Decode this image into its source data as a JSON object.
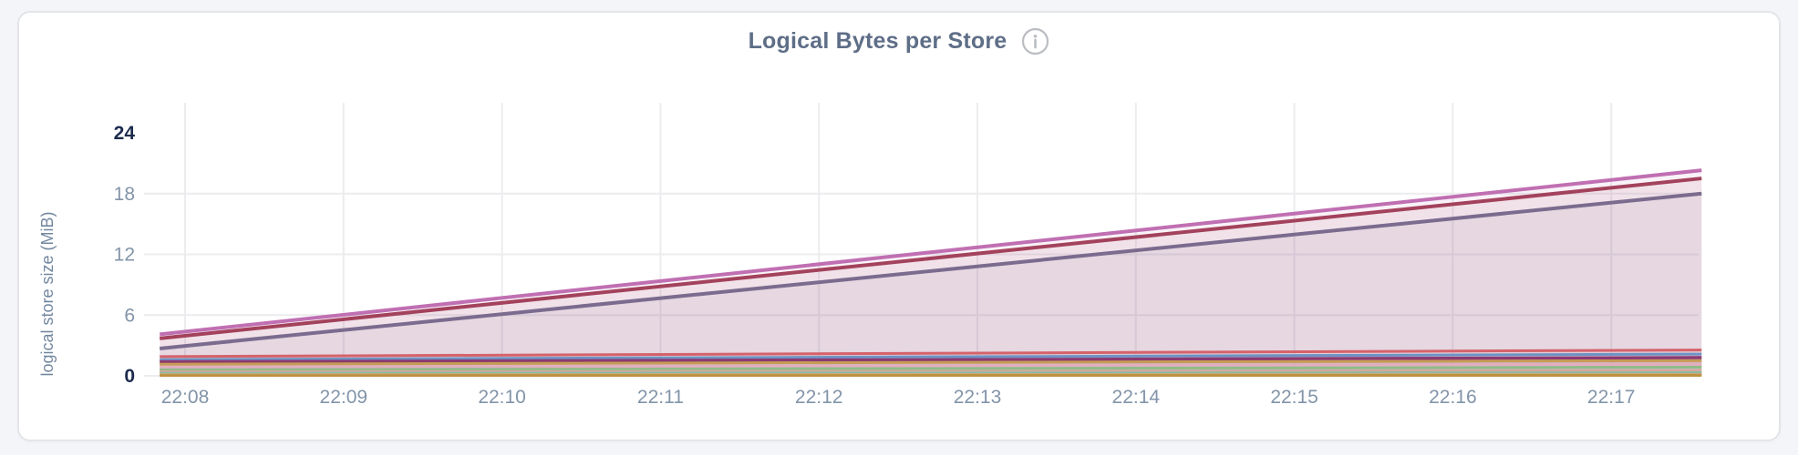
{
  "page": {
    "background": "#f4f5f9"
  },
  "card": {
    "background": "#ffffff",
    "border_color": "#e4e5e9"
  },
  "chart": {
    "title": "Logical Bytes per Store",
    "info_icon": "info-circle",
    "y_axis": {
      "label": "logical store size (MiB)",
      "ticks": [
        0,
        6,
        12,
        18,
        24
      ],
      "emphasized_ticks": [
        0,
        24
      ],
      "range": [
        0,
        24
      ]
    },
    "x_axis": {
      "tick_labels": [
        "22:08",
        "22:09",
        "22:10",
        "22:11",
        "22:12",
        "22:13",
        "22:14",
        "22:15",
        "22:16",
        "22:17"
      ]
    }
  },
  "chart_data": {
    "type": "area",
    "title": "Logical Bytes per Store",
    "xlabel": "",
    "ylabel": "logical store size (MiB)",
    "ylim": [
      0,
      24
    ],
    "grid": true,
    "legend_position": "none",
    "x_tick_labels": [
      "22:08",
      "22:09",
      "22:10",
      "22:11",
      "22:12",
      "22:13",
      "22:14",
      "22:15",
      "22:16",
      "22:17"
    ],
    "x_tick_positions_min": [
      0,
      1,
      2,
      3,
      4,
      5,
      6,
      7,
      8,
      9
    ],
    "x_domain_min": [
      -0.16,
      9.57
    ],
    "note": "all series are straight lines between the two endpoints; x in minutes after 22:08; y in MiB",
    "series": [
      {
        "name": "series-slate",
        "color": "#716f90",
        "x": [
          -0.16,
          9.57
        ],
        "y": [
          2.7,
          18.0
        ],
        "line_width": 4
      },
      {
        "name": "series-maroon",
        "color": "#a13e54",
        "x": [
          -0.16,
          9.57
        ],
        "y": [
          3.7,
          19.5
        ],
        "line_width": 4
      },
      {
        "name": "series-orchid",
        "color": "#c06fb2",
        "x": [
          -0.16,
          9.57
        ],
        "y": [
          4.1,
          20.3
        ],
        "line_width": 4
      },
      {
        "name": "series-salmon",
        "color": "#d5626a",
        "x": [
          -0.16,
          9.57
        ],
        "y": [
          1.9,
          2.55
        ],
        "line_width": 3
      },
      {
        "name": "series-steel-blue",
        "color": "#6e93c4",
        "x": [
          -0.16,
          9.57
        ],
        "y": [
          1.6,
          2.15
        ],
        "line_width": 3
      },
      {
        "name": "series-magenta",
        "color": "#8c3a71",
        "x": [
          -0.16,
          9.57
        ],
        "y": [
          1.38,
          1.8
        ],
        "line_width": 3.5
      },
      {
        "name": "series-gold",
        "color": "#c69c55",
        "x": [
          -0.16,
          9.57
        ],
        "y": [
          1.15,
          1.5
        ],
        "line_width": 3
      },
      {
        "name": "series-light-pink",
        "color": "#e3aec0",
        "x": [
          -0.16,
          9.57
        ],
        "y": [
          0.85,
          1.15
        ],
        "line_width": 3
      },
      {
        "name": "series-green",
        "color": "#8fbc88",
        "x": [
          -0.16,
          9.57
        ],
        "y": [
          0.6,
          0.85
        ],
        "line_width": 3
      },
      {
        "name": "series-rose-tan",
        "color": "#d6a79e",
        "x": [
          -0.16,
          9.57
        ],
        "y": [
          0.4,
          0.5
        ],
        "line_width": 3
      },
      {
        "name": "series-sea-green",
        "color": "#82bda2",
        "x": [
          -0.16,
          9.57
        ],
        "y": [
          0.25,
          0.3
        ],
        "line_width": 3
      },
      {
        "name": "series-tan",
        "color": "#c9aa7d",
        "x": [
          -0.16,
          9.57
        ],
        "y": [
          0.12,
          0.15
        ],
        "line_width": 3
      },
      {
        "name": "series-dark-gold",
        "color": "#bf9140",
        "x": [
          -0.16,
          9.57
        ],
        "y": [
          0.03,
          0.05
        ],
        "line_width": 3
      }
    ],
    "fill_opacity": 0.09
  }
}
